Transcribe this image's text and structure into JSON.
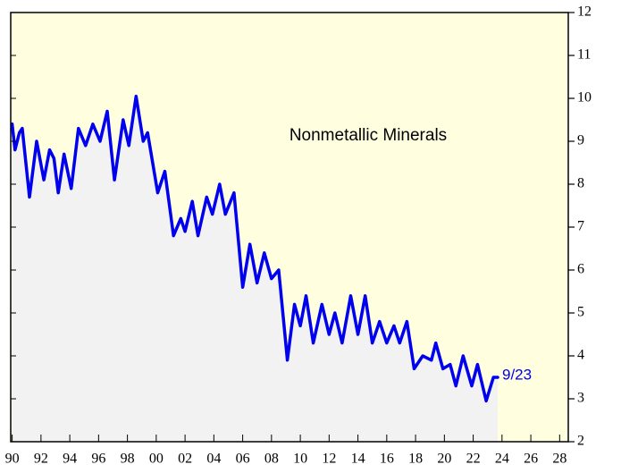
{
  "chart_data": {
    "type": "line",
    "title": "Nonmetallic Minerals",
    "annotations": [
      "9/23"
    ],
    "x": [
      1990.0,
      1990.2,
      1990.5,
      1990.7,
      1991.2,
      1991.7,
      1992.2,
      1992.6,
      1992.9,
      1993.2,
      1993.6,
      1994.1,
      1994.6,
      1995.1,
      1995.6,
      1996.1,
      1996.6,
      1997.1,
      1997.7,
      1998.1,
      1998.6,
      1999.1,
      1999.4,
      2000.1,
      2000.6,
      2001.2,
      2001.7,
      2002.0,
      2002.5,
      2002.9,
      2003.5,
      2003.9,
      2004.4,
      2004.8,
      2005.4,
      2006.0,
      2006.5,
      2007.0,
      2007.5,
      2008.0,
      2008.5,
      2008.9,
      2009.1,
      2009.6,
      2010.0,
      2010.4,
      2010.9,
      2011.5,
      2012.0,
      2012.4,
      2012.9,
      2013.5,
      2014.0,
      2014.5,
      2015.0,
      2015.5,
      2016.0,
      2016.5,
      2016.9,
      2017.4,
      2017.9,
      2018.5,
      2019.1,
      2019.4,
      2019.9,
      2020.4,
      2020.8,
      2021.3,
      2021.9,
      2022.3,
      2022.9,
      2023.4,
      2023.7
    ],
    "series": [
      {
        "color": "#0000ee",
        "values": [
          9.4,
          8.8,
          9.2,
          9.3,
          7.7,
          9.0,
          8.1,
          8.8,
          8.6,
          7.8,
          8.7,
          7.9,
          9.3,
          8.9,
          9.4,
          9.0,
          9.7,
          8.1,
          9.5,
          8.9,
          10.05,
          9.0,
          9.2,
          7.8,
          8.3,
          6.8,
          7.2,
          6.9,
          7.6,
          6.8,
          7.7,
          7.3,
          8.0,
          7.3,
          7.8,
          5.6,
          6.6,
          5.7,
          6.4,
          5.8,
          6.0,
          4.6,
          3.9,
          5.2,
          4.7,
          5.4,
          4.3,
          5.2,
          4.5,
          5.0,
          4.3,
          5.4,
          4.5,
          5.4,
          4.3,
          4.8,
          4.3,
          4.7,
          4.3,
          4.8,
          3.7,
          4.0,
          3.9,
          4.3,
          3.7,
          3.8,
          3.3,
          4.0,
          3.3,
          3.8,
          2.95,
          3.5,
          3.5
        ]
      }
    ],
    "xlim": [
      1989.9,
      2028.6
    ],
    "xticks": [
      {
        "value": 1990,
        "label": "90"
      },
      {
        "value": 1992,
        "label": "92"
      },
      {
        "value": 1994,
        "label": "94"
      },
      {
        "value": 1996,
        "label": "96"
      },
      {
        "value": 1998,
        "label": "98"
      },
      {
        "value": 2000,
        "label": "00"
      },
      {
        "value": 2002,
        "label": "02"
      },
      {
        "value": 2004,
        "label": "04"
      },
      {
        "value": 2006,
        "label": "06"
      },
      {
        "value": 2008,
        "label": "08"
      },
      {
        "value": 2010,
        "label": "10"
      },
      {
        "value": 2012,
        "label": "12"
      },
      {
        "value": 2014,
        "label": "14"
      },
      {
        "value": 2016,
        "label": "16"
      },
      {
        "value": 2018,
        "label": "18"
      },
      {
        "value": 2020,
        "label": "20"
      },
      {
        "value": 2022,
        "label": "22"
      },
      {
        "value": 2024,
        "label": "24"
      },
      {
        "value": 2026,
        "label": "26"
      },
      {
        "value": 2028,
        "label": "28"
      }
    ],
    "ylim": [
      2,
      12
    ],
    "yticks": [
      2,
      3,
      4,
      5,
      6,
      7,
      8,
      9,
      10,
      11,
      12
    ]
  }
}
